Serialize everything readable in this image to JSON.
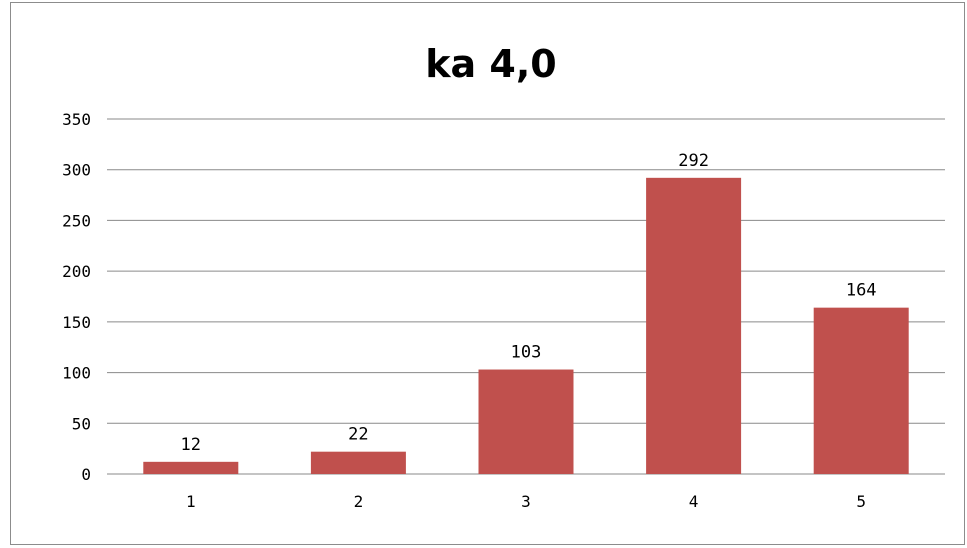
{
  "chart_data": {
    "type": "bar",
    "title": "ka 4,0",
    "categories": [
      "1",
      "2",
      "3",
      "4",
      "5"
    ],
    "values": [
      12,
      22,
      103,
      292,
      164
    ],
    "data_labels": [
      "12",
      "22",
      "103",
      "292",
      "164"
    ],
    "ylim": [
      0,
      350
    ],
    "yticks": [
      "0",
      "50",
      "100",
      "150",
      "200",
      "250",
      "300",
      "350"
    ],
    "ytick_values": [
      0,
      50,
      100,
      150,
      200,
      250,
      300,
      350
    ],
    "xlabel": "",
    "ylabel": "",
    "grid": true,
    "legend": "none",
    "bar_color": "#c0504d"
  }
}
